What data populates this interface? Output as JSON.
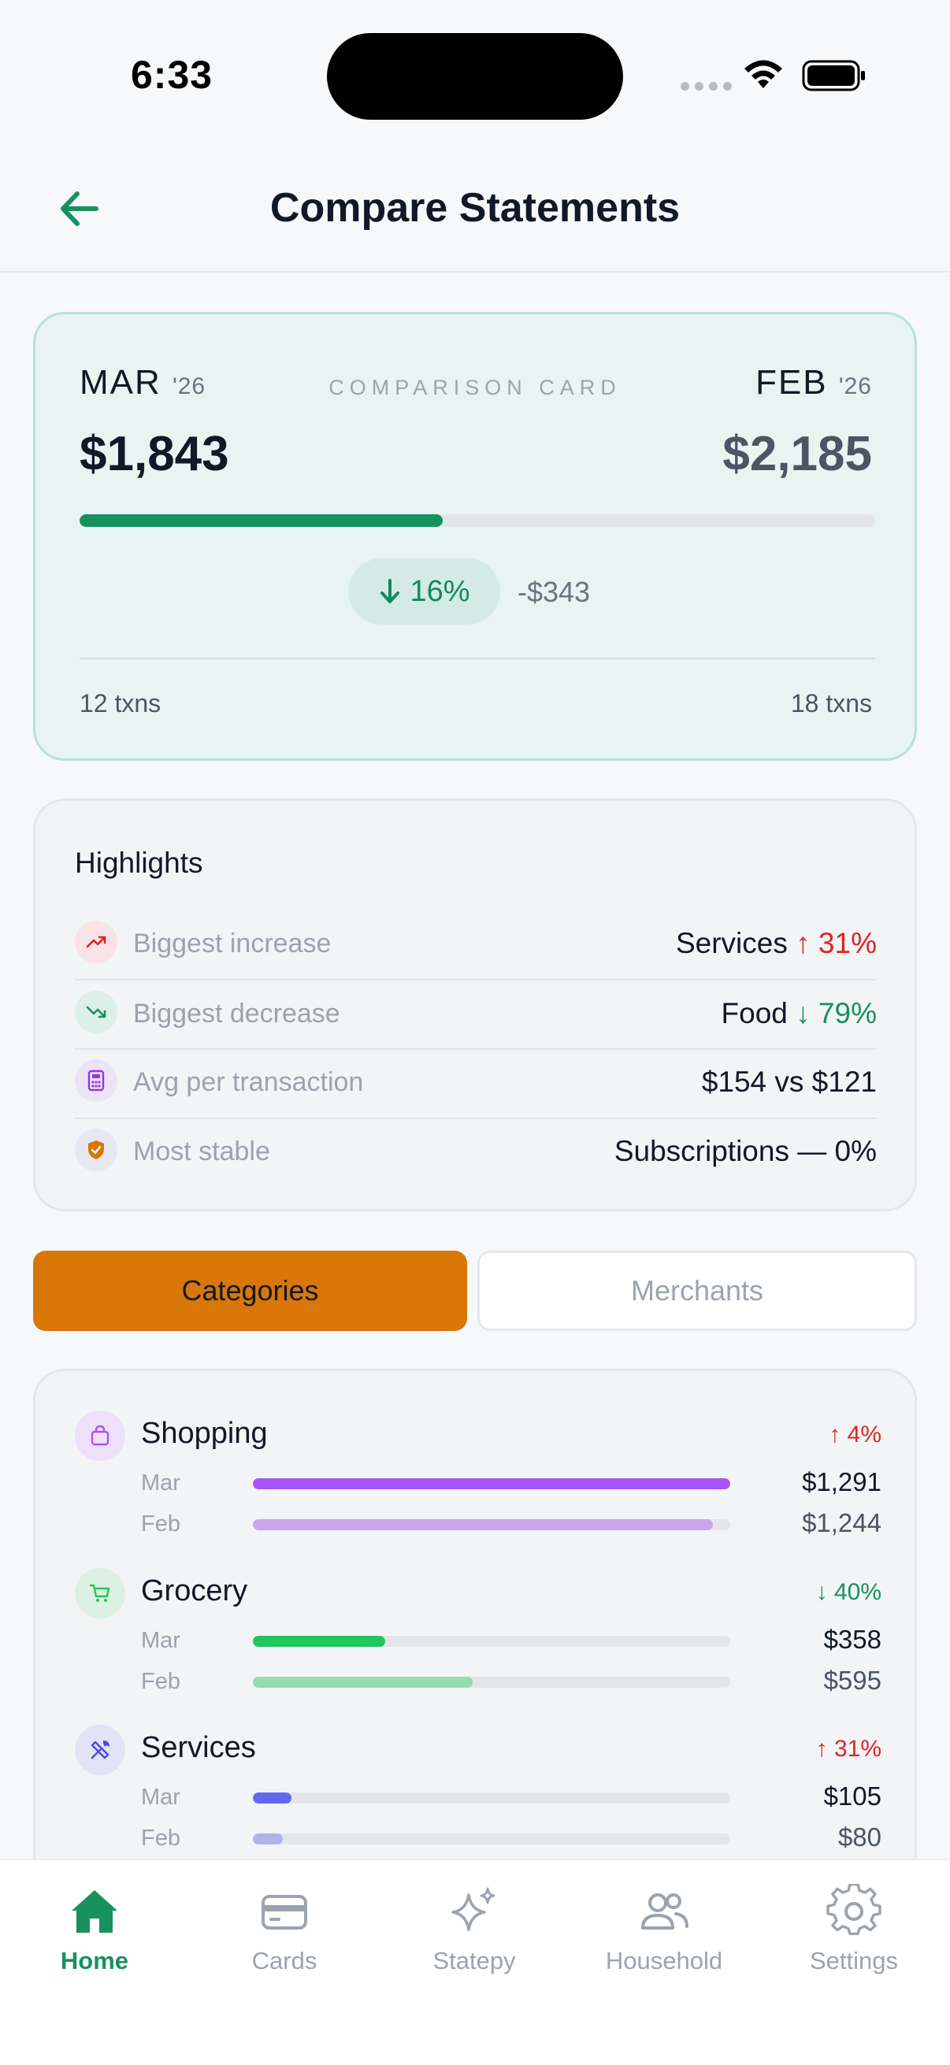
{
  "status": {
    "time": "6:33"
  },
  "header": {
    "title": "Compare Statements"
  },
  "comparison": {
    "label": "COMPARISON CARD",
    "current": {
      "month": "MAR",
      "year": "'26",
      "amount": "$1,843",
      "txns": "12 txns"
    },
    "previous": {
      "month": "FEB",
      "year": "'26",
      "amount": "$2,185",
      "txns": "18 txns"
    },
    "progress_fraction": 0.456,
    "delta_pct": "16%",
    "delta_amount": "-$343"
  },
  "highlights": {
    "title": "Highlights",
    "rows": [
      {
        "label": "Biggest increase",
        "value": "Services",
        "delta": "↑ 31%",
        "icon": "trend-up-icon"
      },
      {
        "label": "Biggest decrease",
        "value": "Food",
        "delta": "↓ 79%",
        "icon": "trend-down-icon"
      },
      {
        "label": "Avg per transaction",
        "value": "$154 vs $121",
        "icon": "calculator-icon"
      },
      {
        "label": "Most stable",
        "value": "Subscriptions — 0%",
        "icon": "shield-icon"
      }
    ]
  },
  "tabs": {
    "categories": "Categories",
    "merchants": "Merchants"
  },
  "categories": [
    {
      "name": "Shopping",
      "change": "↑ 4%",
      "direction": "up",
      "mar_label": "Mar",
      "feb_label": "Feb",
      "mar_amount": "$1,291",
      "feb_amount": "$1,244",
      "mar_fraction": 1.0,
      "feb_fraction": 0.964,
      "color": "#a855f7",
      "color_light": "#c9a6ec",
      "icon": "bag-icon"
    },
    {
      "name": "Grocery",
      "change": "↓ 40%",
      "direction": "down",
      "mar_label": "Mar",
      "feb_label": "Feb",
      "mar_amount": "$358",
      "feb_amount": "$595",
      "mar_fraction": 0.277,
      "feb_fraction": 0.461,
      "color": "#22c55e",
      "color_light": "#97dbb0",
      "icon": "cart-icon"
    },
    {
      "name": "Services",
      "change": "↑ 31%",
      "direction": "up",
      "mar_label": "Mar",
      "feb_label": "Feb",
      "mar_amount": "$105",
      "feb_amount": "$80",
      "mar_fraction": 0.081,
      "feb_fraction": 0.062,
      "color": "#6366f1",
      "color_light": "#b1b3ee",
      "icon": "tools-icon"
    }
  ],
  "nav": [
    {
      "label": "Home",
      "icon": "home-icon",
      "active": true
    },
    {
      "label": "Cards",
      "icon": "card-icon",
      "active": false
    },
    {
      "label": "Statepy",
      "icon": "sparkle-icon",
      "active": false
    },
    {
      "label": "Household",
      "icon": "people-icon",
      "active": false
    },
    {
      "label": "Settings",
      "icon": "gear-icon",
      "active": false
    }
  ],
  "colors": {
    "accent_green": "#17925f",
    "accent_orange": "#d97706",
    "up_red": "#dc2626"
  }
}
